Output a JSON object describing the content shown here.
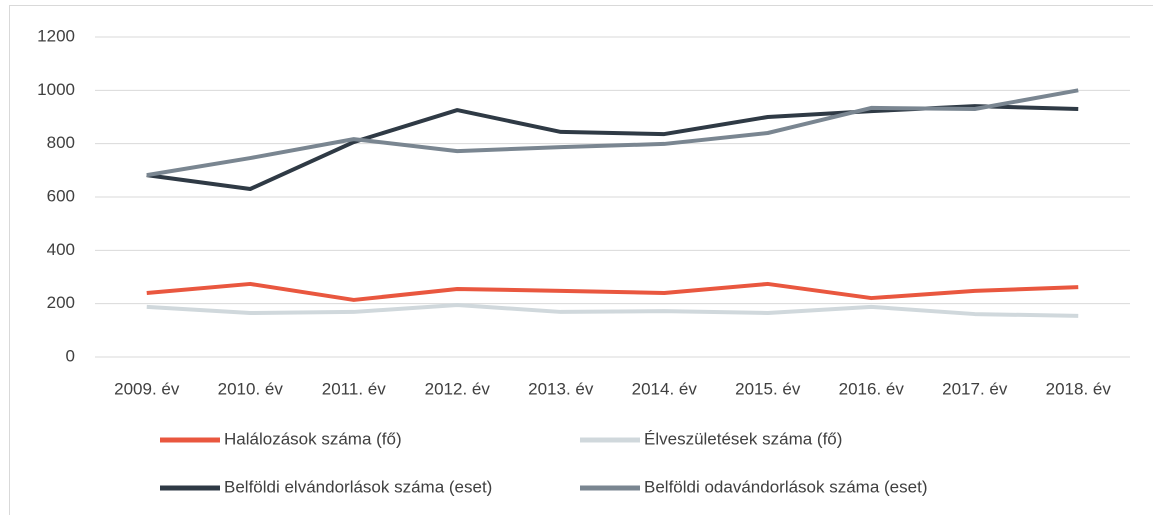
{
  "chart_data": {
    "type": "line",
    "categories": [
      "2009. év",
      "2010. év",
      "2011. év",
      "2012. év",
      "2013. év",
      "2014. év",
      "2015. év",
      "2016. év",
      "2017. év",
      "2018. év"
    ],
    "series": [
      {
        "name": "Halálozások száma (fő)",
        "color": "#e9573f",
        "values": [
          240,
          274,
          214,
          255,
          248,
          240,
          274,
          221,
          248,
          262
        ]
      },
      {
        "name": "Élveszületések száma (fő)",
        "color": "#d0d8dc",
        "values": [
          188,
          165,
          169,
          195,
          169,
          172,
          165,
          188,
          161,
          154
        ]
      },
      {
        "name": "Belföldi elvándorlások száma (eset)",
        "color": "#2f3a45",
        "values": [
          682,
          630,
          806,
          926,
          844,
          836,
          900,
          922,
          941,
          930
        ]
      },
      {
        "name": "Belföldi odavándorlások száma (eset)",
        "color": "#7a8691",
        "values": [
          682,
          746,
          817,
          772,
          787,
          799,
          840,
          934,
          930,
          1000
        ]
      }
    ],
    "ylim": [
      0,
      1200
    ],
    "yticks": [
      0,
      200,
      400,
      600,
      800,
      1000,
      1200
    ],
    "grid": true,
    "legend": "bottom"
  }
}
